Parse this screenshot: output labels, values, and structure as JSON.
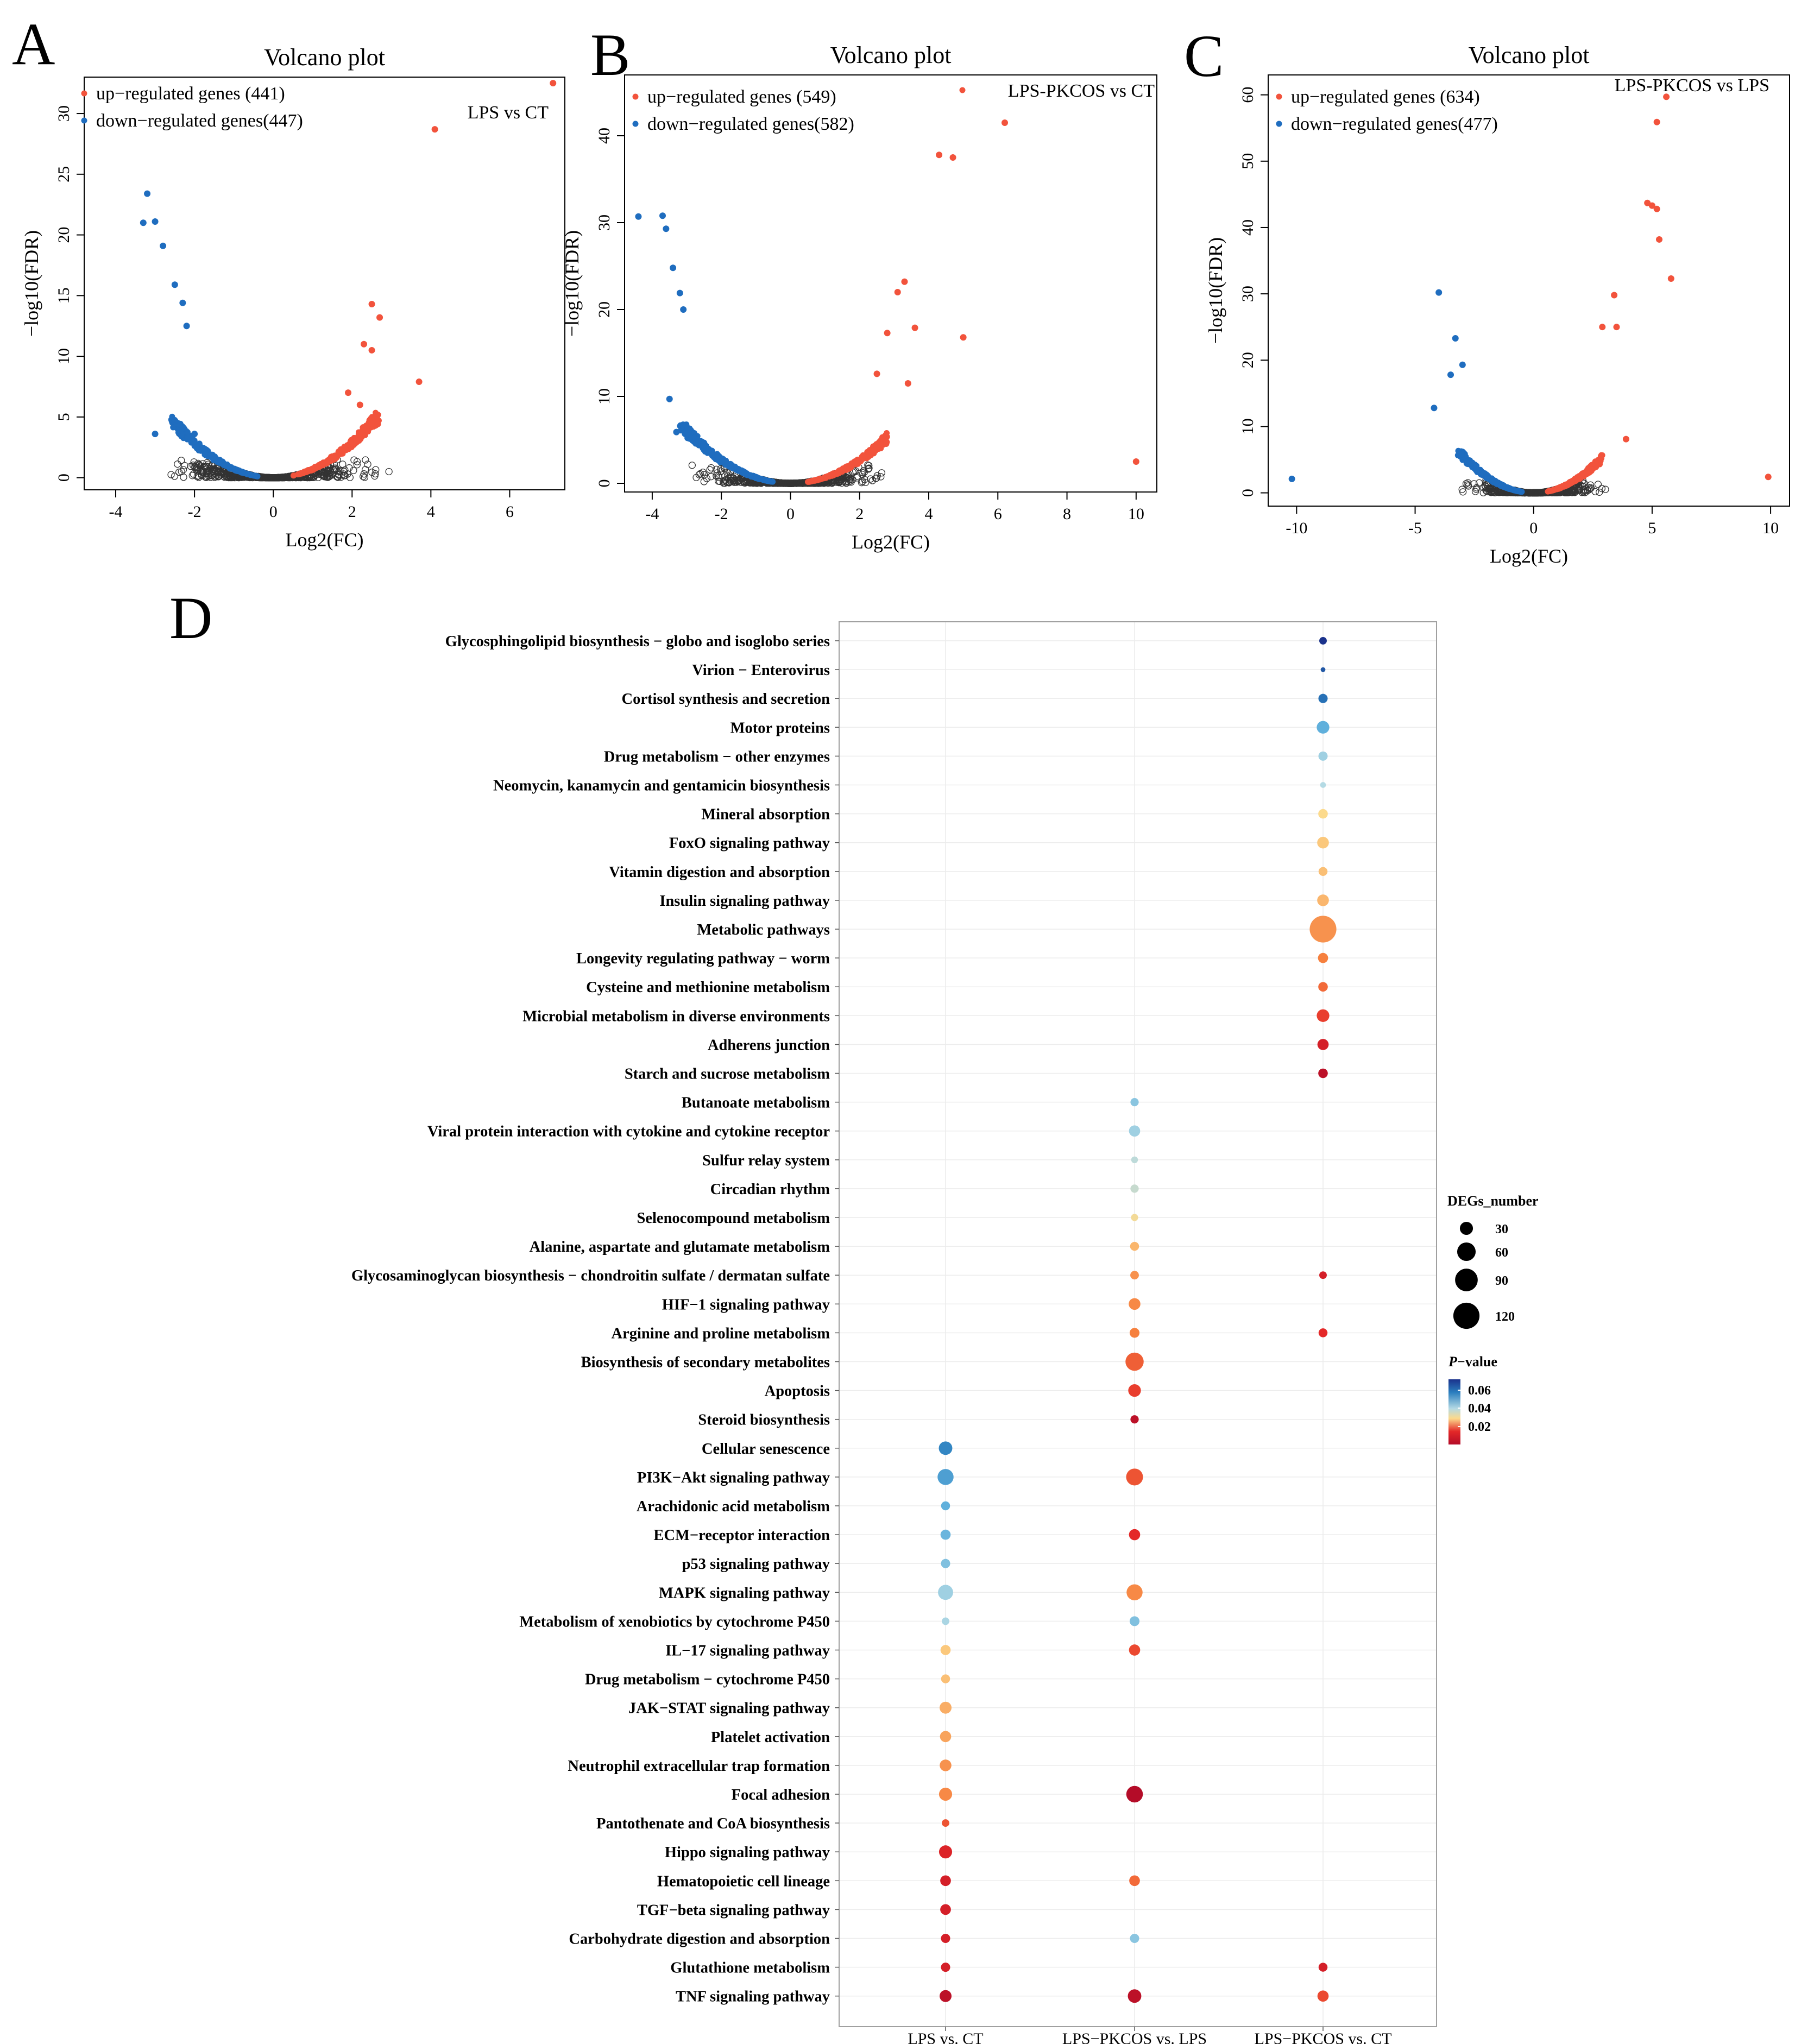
{
  "chart_data": [
    {
      "panel": "A",
      "type": "scatter",
      "title": "Volcano plot",
      "annotation": "LPS vs CT",
      "xlabel": "Log2(FC)",
      "ylabel": "−log10(FDR)",
      "xlim": [
        -4.8,
        7.4
      ],
      "ylim": [
        -1,
        33
      ],
      "xticks": [
        -4,
        -2,
        0,
        2,
        4,
        6
      ],
      "yticks": [
        0,
        5,
        10,
        15,
        20,
        25,
        30
      ],
      "vlim": 1.5,
      "seed": 3,
      "legend": {
        "up": "up−regulated genes (441)",
        "down": "down−regulated genes(447)"
      },
      "up": [
        [
          7.1,
          32.5
        ],
        [
          4.1,
          28.7
        ],
        [
          2.5,
          14.3
        ],
        [
          2.7,
          13.2
        ],
        [
          2.3,
          11
        ],
        [
          2.5,
          10.5
        ],
        [
          3.7,
          7.9
        ],
        [
          1.9,
          7
        ],
        [
          2.2,
          6
        ]
      ],
      "down": [
        [
          -3.2,
          23.4
        ],
        [
          -3.3,
          21
        ],
        [
          -3,
          21.1
        ],
        [
          -2.8,
          19.1
        ],
        [
          -2.5,
          15.9
        ],
        [
          -2.3,
          14.4
        ],
        [
          -2.2,
          12.5
        ],
        [
          -3,
          3.6
        ],
        [
          -2,
          3.6
        ]
      ],
      "range_up": [
        0.5,
        2.7
      ],
      "range_down": [
        -2.6,
        -0.4
      ]
    },
    {
      "panel": "B",
      "type": "scatter",
      "title": "Volcano plot",
      "annotation": "LPS-PKCOS vs CT",
      "xlabel": "Log2(FC)",
      "ylabel": "−log10(FDR)",
      "xlim": [
        -4.8,
        10.6
      ],
      "ylim": [
        -1,
        47
      ],
      "xticks": [
        -4,
        -2,
        0,
        2,
        4,
        6,
        8,
        10
      ],
      "yticks": [
        0,
        10,
        20,
        30,
        40
      ],
      "vlim": 2.2,
      "seed": 7,
      "legend": {
        "up": "up−regulated genes (549)",
        "down": "down−regulated genes(582)"
      },
      "up": [
        [
          6.2,
          41.5
        ],
        [
          4.3,
          37.8
        ],
        [
          4.7,
          37.5
        ],
        [
          3.3,
          23.2
        ],
        [
          3.1,
          22
        ],
        [
          3.6,
          17.9
        ],
        [
          5,
          16.8
        ],
        [
          2.8,
          17.3
        ],
        [
          2.5,
          12.6
        ],
        [
          3.4,
          11.5
        ],
        [
          10,
          2.5
        ]
      ],
      "down": [
        [
          -4.4,
          30.7
        ],
        [
          -3.7,
          30.8
        ],
        [
          -3.6,
          29.3
        ],
        [
          -3.4,
          24.8
        ],
        [
          -3.2,
          21.9
        ],
        [
          -3.1,
          20
        ],
        [
          -3.5,
          9.7
        ],
        [
          -3.3,
          5.9
        ]
      ],
      "range_up": [
        0.5,
        2.8
      ],
      "range_down": [
        -3.2,
        -0.5
      ]
    },
    {
      "panel": "C",
      "type": "scatter",
      "title": "Volcano plot",
      "annotation": "LPS-PKCOS vs LPS",
      "xlabel": "Log2(FC)",
      "ylabel": "−log10(FDR)",
      "xlim": [
        -11.2,
        10.8
      ],
      "ylim": [
        -2,
        63
      ],
      "xticks": [
        -10,
        -5,
        0,
        5,
        10
      ],
      "yticks": [
        0,
        10,
        20,
        30,
        40,
        50,
        60
      ],
      "vlim": 2.1,
      "seed": 11,
      "legend": {
        "up": "up−regulated genes (634)",
        "down": "down−regulated genes(477)"
      },
      "up": [
        [
          5.6,
          59.7
        ],
        [
          5.2,
          55.9
        ],
        [
          4.8,
          43.7
        ],
        [
          5,
          43.3
        ],
        [
          5.2,
          42.8
        ],
        [
          5.3,
          38.2
        ],
        [
          5.8,
          32.3
        ],
        [
          3.4,
          29.8
        ],
        [
          2.9,
          25
        ],
        [
          3.5,
          25
        ],
        [
          3.9,
          8.1
        ],
        [
          9.9,
          2.4
        ]
      ],
      "down": [
        [
          -4,
          30.2
        ],
        [
          -3.3,
          23.3
        ],
        [
          -3,
          19.3
        ],
        [
          -3.5,
          17.8
        ],
        [
          -4.2,
          12.8
        ],
        [
          -10.2,
          2.1
        ]
      ],
      "range_up": [
        0.6,
        2.9
      ],
      "range_down": [
        -3.2,
        -0.5
      ]
    },
    {
      "panel": "D",
      "type": "bubble",
      "groups": [
        "LPS vs. CT",
        "LPS−PKCOS vs. LPS",
        "LPS−PKCOS vs. CT"
      ],
      "size_legend": {
        "title": "DEGs_number",
        "values": [
          30,
          60,
          90,
          120
        ]
      },
      "color_legend": {
        "title_italic": "P",
        "title_rest": "−value",
        "ticks": [
          0.06,
          0.04,
          0.02
        ]
      },
      "pathways": [
        "Glycosphingolipid biosynthesis − globo and isoglobo series",
        "Virion − Enterovirus",
        "Cortisol synthesis and secretion",
        "Motor proteins",
        "Drug metabolism − other enzymes",
        "Neomycin, kanamycin and gentamicin biosynthesis",
        "Mineral absorption",
        "FoxO signaling pathway",
        "Vitamin digestion and absorption",
        "Insulin signaling pathway",
        "Metabolic pathways",
        "Longevity regulating pathway − worm",
        "Cysteine and methionine metabolism",
        "Microbial metabolism in diverse environments",
        "Adherens junction",
        "Starch and sucrose metabolism",
        "Butanoate metabolism",
        "Viral protein interaction with cytokine and cytokine receptor",
        "Sulfur relay system",
        "Circadian rhythm",
        "Selenocompound metabolism",
        "Alanine, aspartate and glutamate metabolism",
        "Glycosaminoglycan biosynthesis − chondroitin sulfate / dermatan sulfate",
        "HIF−1 signaling pathway",
        "Arginine and proline metabolism",
        "Biosynthesis of secondary metabolites",
        "Apoptosis",
        "Steroid biosynthesis",
        "Cellular senescence",
        "PI3K−Akt signaling pathway",
        "Arachidonic acid metabolism",
        "ECM−receptor interaction",
        "p53 signaling pathway",
        "MAPK signaling pathway",
        "Metabolism of xenobiotics by cytochrome P450",
        "IL−17 signaling pathway",
        "Drug metabolism − cytochrome P450",
        "JAK−STAT signaling pathway",
        "Platelet activation",
        "Neutrophil extracellular trap formation",
        "Focal adhesion",
        "Pantothenate and CoA biosynthesis",
        "Hippo signaling pathway",
        "Hematopoietic cell lineage",
        "TGF−beta signaling pathway",
        "Carbohydrate digestion and absorption",
        "Glutathione metabolism",
        "TNF signaling pathway"
      ],
      "points": [
        [
          0,
          2,
          10,
          0.068
        ],
        [
          1,
          2,
          4,
          0.065
        ],
        [
          2,
          2,
          15,
          0.063
        ],
        [
          3,
          2,
          28,
          0.056
        ],
        [
          4,
          2,
          15,
          0.05
        ],
        [
          5,
          2,
          6,
          0.048
        ],
        [
          6,
          2,
          16,
          0.04
        ],
        [
          7,
          2,
          24,
          0.038
        ],
        [
          8,
          2,
          14,
          0.037
        ],
        [
          9,
          2,
          24,
          0.036
        ],
        [
          10,
          2,
          125,
          0.032
        ],
        [
          11,
          2,
          18,
          0.03
        ],
        [
          12,
          2,
          16,
          0.028
        ],
        [
          13,
          2,
          28,
          0.024
        ],
        [
          14,
          2,
          22,
          0.02
        ],
        [
          15,
          2,
          16,
          0.017
        ],
        [
          16,
          1,
          12,
          0.052
        ],
        [
          17,
          1,
          22,
          0.05
        ],
        [
          18,
          1,
          8,
          0.047
        ],
        [
          19,
          1,
          12,
          0.046
        ],
        [
          20,
          1,
          9,
          0.041
        ],
        [
          21,
          1,
          14,
          0.036
        ],
        [
          22,
          1,
          13,
          0.032
        ],
        [
          22,
          2,
          10,
          0.02
        ],
        [
          23,
          1,
          24,
          0.031
        ],
        [
          24,
          1,
          17,
          0.03
        ],
        [
          24,
          2,
          14,
          0.022
        ],
        [
          25,
          1,
          58,
          0.027
        ],
        [
          26,
          1,
          28,
          0.024
        ],
        [
          27,
          1,
          12,
          0.017
        ],
        [
          28,
          0,
          32,
          0.061
        ],
        [
          29,
          0,
          45,
          0.058
        ],
        [
          29,
          1,
          50,
          0.026
        ],
        [
          30,
          0,
          14,
          0.056
        ],
        [
          31,
          0,
          18,
          0.055
        ],
        [
          31,
          1,
          22,
          0.022
        ],
        [
          32,
          0,
          15,
          0.053
        ],
        [
          33,
          0,
          40,
          0.05
        ],
        [
          33,
          1,
          45,
          0.031
        ],
        [
          34,
          0,
          10,
          0.049
        ],
        [
          34,
          1,
          17,
          0.053
        ],
        [
          35,
          0,
          18,
          0.038
        ],
        [
          35,
          1,
          22,
          0.025
        ],
        [
          36,
          0,
          14,
          0.037
        ],
        [
          37,
          0,
          25,
          0.035
        ],
        [
          38,
          0,
          22,
          0.034
        ],
        [
          39,
          0,
          24,
          0.032
        ],
        [
          40,
          0,
          30,
          0.031
        ],
        [
          40,
          1,
          48,
          0.016
        ],
        [
          41,
          0,
          10,
          0.026
        ],
        [
          42,
          0,
          30,
          0.021
        ],
        [
          43,
          0,
          20,
          0.02
        ],
        [
          43,
          1,
          20,
          0.028
        ],
        [
          44,
          0,
          20,
          0.02
        ],
        [
          45,
          0,
          15,
          0.02
        ],
        [
          45,
          1,
          15,
          0.052
        ],
        [
          46,
          0,
          15,
          0.02
        ],
        [
          46,
          2,
          14,
          0.02
        ],
        [
          47,
          0,
          25,
          0.017
        ],
        [
          47,
          1,
          32,
          0.017
        ],
        [
          47,
          2,
          22,
          0.025
        ]
      ]
    }
  ]
}
